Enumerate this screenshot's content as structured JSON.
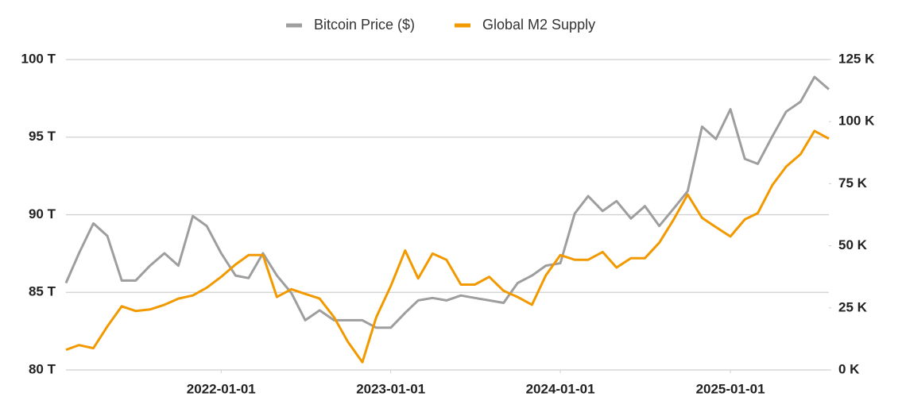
{
  "chart_data": {
    "type": "line",
    "x": [
      "2021-02-01",
      "2021-03-01",
      "2021-04-01",
      "2021-05-01",
      "2021-06-01",
      "2021-07-01",
      "2021-08-01",
      "2021-09-01",
      "2021-10-01",
      "2021-11-01",
      "2021-12-01",
      "2022-01-01",
      "2022-02-01",
      "2022-03-01",
      "2022-04-01",
      "2022-05-01",
      "2022-06-01",
      "2022-07-01",
      "2022-08-01",
      "2022-09-01",
      "2022-10-01",
      "2022-11-01",
      "2022-12-01",
      "2023-01-01",
      "2023-02-01",
      "2023-03-01",
      "2023-04-01",
      "2023-05-01",
      "2023-06-01",
      "2023-07-01",
      "2023-08-01",
      "2023-09-01",
      "2023-10-01",
      "2023-11-01",
      "2023-12-01",
      "2024-01-01",
      "2024-02-01",
      "2024-03-01",
      "2024-04-01",
      "2024-05-01",
      "2024-06-01",
      "2024-07-01",
      "2024-08-01",
      "2024-09-01",
      "2024-10-01",
      "2024-11-01",
      "2024-12-01",
      "2025-01-01",
      "2025-02-01",
      "2025-03-01",
      "2025-04-01",
      "2025-05-01",
      "2025-06-01",
      "2025-07-01",
      "2025-08-01"
    ],
    "series": [
      {
        "name": "Bitcoin Price ($)",
        "color": "#9e9e9e",
        "axis": "y2",
        "values": [
          35,
          47,
          59,
          54,
          36,
          36,
          42,
          47,
          42,
          62,
          58,
          47,
          38,
          37,
          47,
          38,
          31,
          20,
          24,
          20,
          20,
          20,
          17,
          17,
          23,
          28,
          29,
          28,
          30,
          29,
          28,
          27,
          35,
          38,
          42,
          43,
          63,
          70,
          64,
          68,
          61,
          66,
          58,
          65,
          72,
          98,
          93,
          105,
          85,
          83,
          94,
          104,
          108,
          118,
          113
        ]
      },
      {
        "name": "Global M2 Supply",
        "color": "#f29900",
        "values": [
          81.3,
          81.6,
          81.4,
          82.8,
          84.1,
          83.8,
          83.9,
          84.2,
          84.6,
          84.8,
          85.3,
          86.0,
          86.8,
          87.4,
          87.4,
          84.7,
          85.2,
          84.9,
          84.6,
          83.4,
          81.8,
          80.5,
          83.4,
          85.4,
          87.7,
          85.9,
          87.5,
          87.1,
          85.5,
          85.5,
          86.0,
          85.1,
          84.7,
          84.2,
          86.1,
          87.4,
          87.1,
          87.1,
          87.6,
          86.6,
          87.2,
          87.2,
          88.2,
          89.7,
          91.3,
          89.8,
          89.2,
          88.6,
          89.7,
          90.1,
          91.9,
          93.1,
          93.9,
          95.4,
          94.9
        ]
      }
    ],
    "ylim": [
      80,
      100
    ],
    "yticks": [
      {
        "value": 80,
        "label": "80 T"
      },
      {
        "value": 85,
        "label": "85 T"
      },
      {
        "value": 90,
        "label": "90 T"
      },
      {
        "value": 95,
        "label": "95 T"
      },
      {
        "value": 100,
        "label": "100 T"
      }
    ],
    "y2lim": [
      0,
      125
    ],
    "y2ticks": [
      {
        "value": 0,
        "label": "0 K"
      },
      {
        "value": 25,
        "label": "25 K"
      },
      {
        "value": 50,
        "label": "50 K"
      },
      {
        "value": 75,
        "label": "75 K"
      },
      {
        "value": 100,
        "label": "100 K"
      },
      {
        "value": 125,
        "label": "125 K"
      }
    ],
    "xticks": [
      "2022-01-01",
      "2023-01-01",
      "2024-01-01",
      "2025-01-01"
    ],
    "grid": true,
    "legend": "top"
  }
}
